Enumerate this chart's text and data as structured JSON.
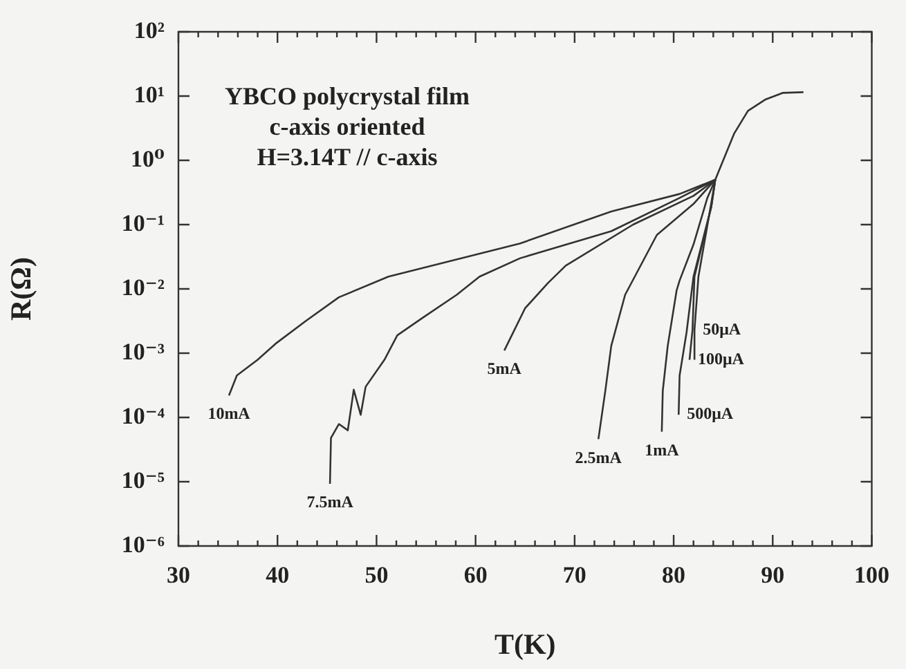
{
  "chart_data": {
    "type": "line",
    "xlabel": "T(K)",
    "ylabel": "R(Ω)",
    "log": "y",
    "grid": false,
    "legend": false,
    "marker": "none",
    "line_style": "solid",
    "xlim": [
      30,
      100
    ],
    "xticks": [
      30,
      {
        "value": 32,
        "label": null
      },
      {
        "value": 34,
        "label": null
      },
      {
        "value": 36,
        "label": null
      },
      {
        "value": 38,
        "label": null
      },
      40,
      {
        "value": 42,
        "label": null
      },
      {
        "value": 44,
        "label": null
      },
      {
        "value": 46,
        "label": null
      },
      {
        "value": 48,
        "label": null
      },
      50,
      {
        "value": 52,
        "label": null
      },
      {
        "value": 54,
        "label": null
      },
      {
        "value": 56,
        "label": null
      },
      {
        "value": 58,
        "label": null
      },
      60,
      {
        "value": 62,
        "label": null
      },
      {
        "value": 64,
        "label": null
      },
      {
        "value": 66,
        "label": null
      },
      {
        "value": 68,
        "label": null
      },
      70,
      {
        "value": 72,
        "label": null
      },
      {
        "value": 74,
        "label": null
      },
      {
        "value": 76,
        "label": null
      },
      {
        "value": 78,
        "label": null
      },
      80,
      {
        "value": 82,
        "label": null
      },
      {
        "value": 84,
        "label": null
      },
      {
        "value": 86,
        "label": null
      },
      {
        "value": 88,
        "label": null
      },
      90,
      {
        "value": 92,
        "label": null
      },
      {
        "value": 94,
        "label": null
      },
      {
        "value": 96,
        "label": null
      },
      {
        "value": 98,
        "label": null
      },
      100
    ],
    "ylim": [
      1e-06,
      100
    ],
    "yticks": [
      {
        "value": 1e-06,
        "label": "10⁻⁶"
      },
      {
        "value": 1e-05,
        "label": "10⁻⁵"
      },
      {
        "value": 0.0001,
        "label": "10⁻⁴"
      },
      {
        "value": 0.001,
        "label": "10⁻³"
      },
      {
        "value": 0.01,
        "label": "10⁻²"
      },
      {
        "value": 0.1,
        "label": "10⁻¹"
      },
      {
        "value": 1,
        "label": "10⁰"
      },
      {
        "value": 10,
        "label": "10¹"
      },
      {
        "value": 100,
        "label": "10²"
      }
    ],
    "series": [
      {
        "name": "10mA",
        "color": "#333333",
        "x": [
          35.1,
          35.9,
          38,
          39.8,
          42.9,
          46.2,
          51.2,
          64.5,
          73.7,
          80.6,
          84.2,
          86.1,
          87.5,
          89.3,
          91,
          93.1
        ],
        "values": [
          0.00022,
          0.00045,
          0.00079,
          0.0014,
          0.0032,
          0.0074,
          0.0155,
          0.051,
          0.16,
          0.3,
          0.5,
          2.6,
          5.9,
          8.9,
          11.2,
          11.5
        ]
      },
      {
        "name": "7.5mA",
        "color": "#333333",
        "x": [
          45.3,
          45.4,
          46.2,
          47.1,
          47.7,
          48.4,
          48.9,
          50.8,
          52.1,
          54.6,
          58.1,
          60.4,
          64.5,
          73.7,
          80.6,
          84.2
        ],
        "values": [
          9.3e-06,
          4.8e-05,
          7.9e-05,
          6.3e-05,
          0.00027,
          0.00011,
          0.0003,
          0.00079,
          0.0019,
          0.0035,
          0.0081,
          0.0155,
          0.03,
          0.079,
          0.26,
          0.5
        ]
      },
      {
        "name": "5mA",
        "color": "#333333",
        "x": [
          62.9,
          65,
          67.3,
          69.1,
          75.9,
          82,
          84.2
        ],
        "values": [
          0.0011,
          0.005,
          0.0123,
          0.023,
          0.1,
          0.28,
          0.5
        ]
      },
      {
        "name": "2.5mA",
        "color": "#333333",
        "x": [
          72.4,
          73.1,
          73.7,
          75.1,
          78.3,
          82,
          84.2
        ],
        "values": [
          4.6e-05,
          0.00026,
          0.0013,
          0.0081,
          0.069,
          0.21,
          0.5
        ]
      },
      {
        "name": "1mA",
        "color": "#333333",
        "x": [
          78.8,
          78.9,
          79.4,
          80.3,
          80.6,
          82,
          83.4,
          84.2
        ],
        "values": [
          6e-05,
          0.00026,
          0.0013,
          0.0095,
          0.0135,
          0.049,
          0.26,
          0.5
        ]
      },
      {
        "name": "500μA",
        "color": "#333333",
        "x": [
          80.5,
          80.6,
          81.3,
          82,
          83.8,
          84.2
        ],
        "values": [
          0.00011,
          0.00045,
          0.0021,
          0.0155,
          0.19,
          0.5
        ]
      },
      {
        "name": "100μA",
        "color": "#333333",
        "x": [
          81.6,
          81.9,
          82.1,
          83.8,
          84.2
        ],
        "values": [
          0.00079,
          0.0023,
          0.0155,
          0.19,
          0.5
        ]
      },
      {
        "name": "50μA",
        "color": "#333333",
        "x": [
          82.1,
          82.1,
          82.5,
          83.8,
          84.2
        ],
        "values": [
          0.00079,
          0.0023,
          0.0155,
          0.22,
          0.5
        ]
      }
    ],
    "annotations": [
      "YBCO polycrystal film",
      "c-axis oriented",
      "H=3.14T // c-axis"
    ]
  }
}
